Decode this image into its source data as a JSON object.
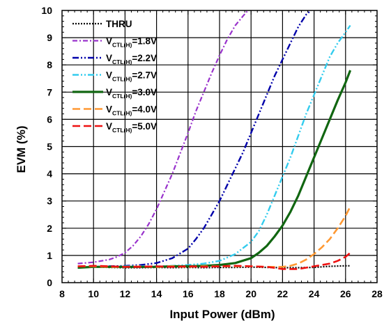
{
  "chart_data": {
    "type": "line",
    "title": "",
    "xlabel": "Input Power  (dBm)",
    "ylabel": "EVM  (%)",
    "xlim": [
      8,
      28
    ],
    "ylim": [
      0,
      10
    ],
    "x_ticks": [
      8,
      10,
      12,
      14,
      16,
      18,
      20,
      22,
      24,
      26,
      28
    ],
    "y_ticks": [
      0,
      1,
      2,
      3,
      4,
      5,
      6,
      7,
      8,
      9,
      10
    ],
    "grid": true,
    "legend_position": "top-left",
    "series": [
      {
        "name": "THRU",
        "legend": {
          "prefix": "THRU",
          "sub": "",
          "suffix": ""
        },
        "color": "#000000",
        "dash": "dotted",
        "points": [
          [
            9,
            0.55
          ],
          [
            10,
            0.58
          ],
          [
            11,
            0.56
          ],
          [
            12,
            0.55
          ],
          [
            13,
            0.55
          ],
          [
            14,
            0.56
          ],
          [
            15,
            0.55
          ],
          [
            16,
            0.56
          ],
          [
            17,
            0.55
          ],
          [
            18,
            0.56
          ],
          [
            19,
            0.56
          ],
          [
            20,
            0.57
          ],
          [
            21,
            0.56
          ],
          [
            22,
            0.55
          ],
          [
            23,
            0.55
          ],
          [
            24,
            0.56
          ],
          [
            25,
            0.6
          ],
          [
            26,
            0.62
          ],
          [
            26.3,
            0.62
          ]
        ]
      },
      {
        "name": "VCTL(H)=1.8V",
        "legend": {
          "prefix": "V",
          "sub": "CTL(H)",
          "suffix": "=1.8V"
        },
        "color": "#9933CC",
        "dash": "dash-dot",
        "points": [
          [
            9,
            0.7
          ],
          [
            10,
            0.75
          ],
          [
            11,
            0.85
          ],
          [
            11.5,
            0.95
          ],
          [
            12,
            1.1
          ],
          [
            12.5,
            1.35
          ],
          [
            13,
            1.7
          ],
          [
            13.5,
            2.15
          ],
          [
            14,
            2.7
          ],
          [
            14.5,
            3.35
          ],
          [
            15,
            4.0
          ],
          [
            15.5,
            4.75
          ],
          [
            16,
            5.5
          ],
          [
            16.5,
            6.3
          ],
          [
            17,
            7.0
          ],
          [
            17.5,
            7.7
          ],
          [
            18,
            8.35
          ],
          [
            18.5,
            8.95
          ],
          [
            19,
            9.45
          ],
          [
            19.5,
            9.8
          ],
          [
            19.8,
            10.0
          ]
        ]
      },
      {
        "name": "VCTL(H)=2.2V",
        "legend": {
          "prefix": "V",
          "sub": "CTL(H)",
          "suffix": "=2.2V"
        },
        "color": "#0000AA",
        "dash": "dash-dot-dot",
        "points": [
          [
            9,
            0.55
          ],
          [
            10,
            0.58
          ],
          [
            11,
            0.6
          ],
          [
            12,
            0.62
          ],
          [
            13,
            0.65
          ],
          [
            14,
            0.72
          ],
          [
            15,
            0.9
          ],
          [
            16,
            1.25
          ],
          [
            16.5,
            1.6
          ],
          [
            17,
            2.0
          ],
          [
            17.5,
            2.5
          ],
          [
            18,
            3.0
          ],
          [
            18.5,
            3.6
          ],
          [
            19,
            4.2
          ],
          [
            19.5,
            4.8
          ],
          [
            20,
            5.5
          ],
          [
            20.5,
            6.2
          ],
          [
            21,
            6.9
          ],
          [
            21.5,
            7.6
          ],
          [
            22,
            8.2
          ],
          [
            22.5,
            8.8
          ],
          [
            23,
            9.4
          ],
          [
            23.5,
            9.85
          ],
          [
            23.8,
            10.0
          ]
        ]
      },
      {
        "name": "VCTL(H)=2.7V",
        "legend": {
          "prefix": "V",
          "sub": "CTL(H)",
          "suffix": "=2.7V"
        },
        "color": "#33CCEE",
        "dash": "dash-dot-dot",
        "points": [
          [
            9,
            0.55
          ],
          [
            10,
            0.58
          ],
          [
            11,
            0.58
          ],
          [
            12,
            0.6
          ],
          [
            13,
            0.6
          ],
          [
            14,
            0.6
          ],
          [
            15,
            0.62
          ],
          [
            16,
            0.65
          ],
          [
            17,
            0.7
          ],
          [
            18,
            0.8
          ],
          [
            19,
            1.05
          ],
          [
            20,
            1.5
          ],
          [
            20.5,
            1.9
          ],
          [
            21,
            2.5
          ],
          [
            21.5,
            3.2
          ],
          [
            22,
            3.9
          ],
          [
            22.5,
            4.6
          ],
          [
            23,
            5.4
          ],
          [
            23.5,
            6.2
          ],
          [
            24,
            6.9
          ],
          [
            24.5,
            7.6
          ],
          [
            25,
            8.3
          ],
          [
            25.5,
            8.8
          ],
          [
            26,
            9.2
          ],
          [
            26.3,
            9.45
          ]
        ]
      },
      {
        "name": "VCTL(H)=3.0V",
        "legend": {
          "prefix": "V",
          "sub": "CTL(H)",
          "suffix": "=3.0V"
        },
        "color": "#116611",
        "dash": "solid",
        "points": [
          [
            9,
            0.55
          ],
          [
            10,
            0.58
          ],
          [
            11,
            0.58
          ],
          [
            12,
            0.58
          ],
          [
            13,
            0.58
          ],
          [
            14,
            0.58
          ],
          [
            15,
            0.6
          ],
          [
            16,
            0.6
          ],
          [
            17,
            0.62
          ],
          [
            18,
            0.65
          ],
          [
            19,
            0.72
          ],
          [
            20,
            0.9
          ],
          [
            20.5,
            1.1
          ],
          [
            21,
            1.35
          ],
          [
            21.5,
            1.7
          ],
          [
            22,
            2.1
          ],
          [
            22.5,
            2.6
          ],
          [
            23,
            3.2
          ],
          [
            23.5,
            3.9
          ],
          [
            24,
            4.6
          ],
          [
            24.5,
            5.3
          ],
          [
            25,
            6.0
          ],
          [
            25.5,
            6.7
          ],
          [
            26,
            7.35
          ],
          [
            26.3,
            7.8
          ]
        ]
      },
      {
        "name": "VCTL(H)=4.0V",
        "legend": {
          "prefix": "V",
          "sub": "CTL(H)",
          "suffix": "=4.0V"
        },
        "color": "#FF9933",
        "dash": "long-dash",
        "points": [
          [
            9,
            0.6
          ],
          [
            10,
            0.6
          ],
          [
            11,
            0.58
          ],
          [
            12,
            0.58
          ],
          [
            13,
            0.6
          ],
          [
            14,
            0.58
          ],
          [
            15,
            0.6
          ],
          [
            16,
            0.58
          ],
          [
            17,
            0.6
          ],
          [
            18,
            0.6
          ],
          [
            19,
            0.6
          ],
          [
            20,
            0.6
          ],
          [
            21,
            0.58
          ],
          [
            22,
            0.58
          ],
          [
            22.5,
            0.62
          ],
          [
            23,
            0.7
          ],
          [
            23.5,
            0.85
          ],
          [
            24,
            1.05
          ],
          [
            24.5,
            1.3
          ],
          [
            25,
            1.6
          ],
          [
            25.5,
            2.0
          ],
          [
            26,
            2.45
          ],
          [
            26.3,
            2.8
          ]
        ]
      },
      {
        "name": "VCTL(H)=5.0V",
        "legend": {
          "prefix": "V",
          "sub": "CTL(H)",
          "suffix": "=5.0V"
        },
        "color": "#EE1111",
        "dash": "long-dash",
        "points": [
          [
            9,
            0.6
          ],
          [
            10,
            0.62
          ],
          [
            11,
            0.6
          ],
          [
            12,
            0.58
          ],
          [
            13,
            0.58
          ],
          [
            14,
            0.6
          ],
          [
            15,
            0.58
          ],
          [
            16,
            0.6
          ],
          [
            17,
            0.58
          ],
          [
            18,
            0.6
          ],
          [
            19,
            0.62
          ],
          [
            20,
            0.6
          ],
          [
            21,
            0.58
          ],
          [
            22,
            0.5
          ],
          [
            23,
            0.5
          ],
          [
            23.5,
            0.55
          ],
          [
            24,
            0.6
          ],
          [
            24.5,
            0.65
          ],
          [
            25,
            0.7
          ],
          [
            25.5,
            0.8
          ],
          [
            26,
            0.95
          ],
          [
            26.3,
            1.1
          ]
        ]
      }
    ]
  }
}
